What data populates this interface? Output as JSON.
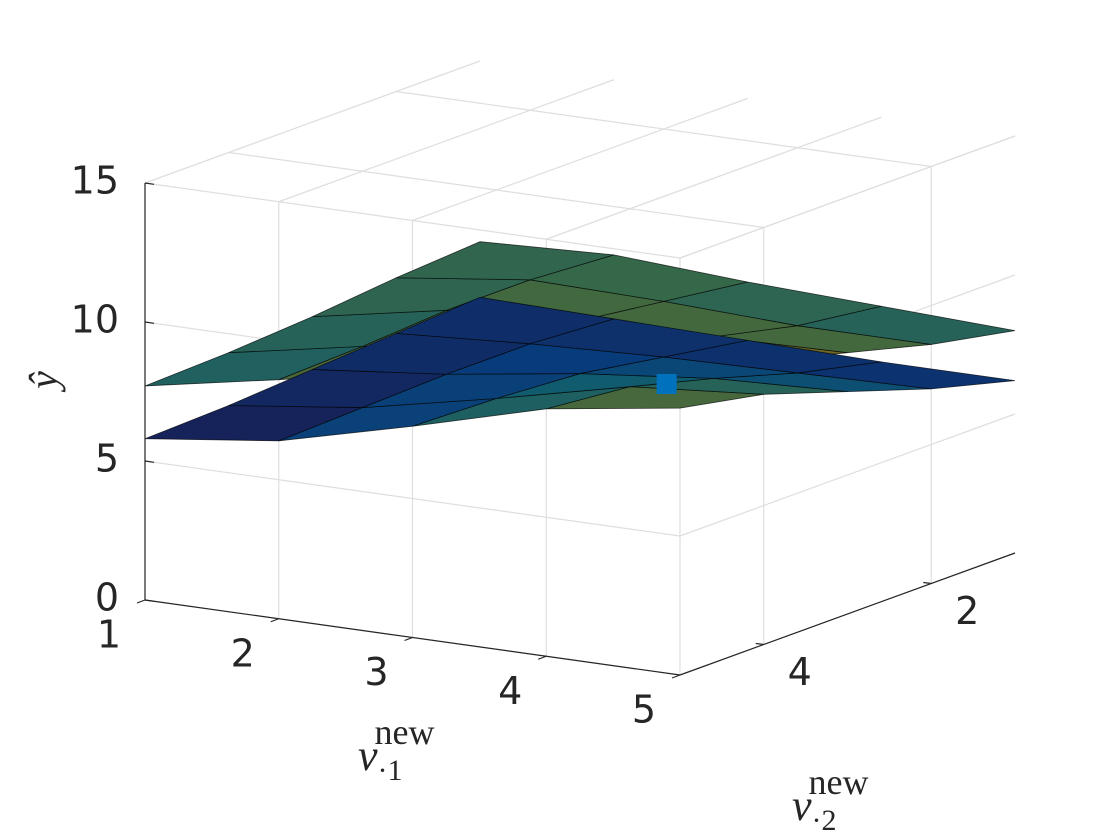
{
  "chart_data": {
    "type": "surface3d",
    "xlabel": {
      "symbol": "v",
      "subscript": "·1",
      "superscript": "new"
    },
    "ylabel": {
      "symbol": "v",
      "subscript": "·2",
      "superscript": "new"
    },
    "zlabel": "ŷ",
    "xlim": [
      1,
      5
    ],
    "ylim": [
      1,
      5
    ],
    "zlim": [
      0,
      15
    ],
    "xticks": [
      1,
      2,
      3,
      4,
      5
    ],
    "yticks": [
      2,
      4
    ],
    "zticks": [
      0,
      5,
      10,
      15
    ],
    "grid": true,
    "colormap": "parula",
    "x": [
      1,
      2,
      3,
      4,
      5
    ],
    "y": [
      1,
      2,
      3,
      4,
      5
    ],
    "surfaces": [
      {
        "z": [
          [
            8.5,
            8.7,
            8.4,
            8.2,
            8.0
          ],
          [
            8.3,
            8.9,
            8.8,
            8.6,
            8.6
          ],
          [
            8.0,
            8.9,
            9.2,
            9.3,
            9.4
          ],
          [
            7.8,
            8.7,
            9.5,
            10.0,
            10.2
          ],
          [
            7.7,
            8.6,
            9.6,
            10.4,
            10.9
          ]
        ]
      },
      {
        "z": [
          [
            6.5,
            6.4,
            6.3,
            6.2,
            6.2
          ],
          [
            6.3,
            6.6,
            6.8,
            6.9,
            7.0
          ],
          [
            6.1,
            6.6,
            7.3,
            7.8,
            8.0
          ],
          [
            5.9,
            6.5,
            7.5,
            8.6,
            9.0
          ],
          [
            5.8,
            6.4,
            7.6,
            8.9,
            9.6
          ]
        ]
      }
    ],
    "points": [
      {
        "x": 4.9,
        "y": 5,
        "z": 10.4,
        "color": "#0072bd"
      }
    ]
  }
}
